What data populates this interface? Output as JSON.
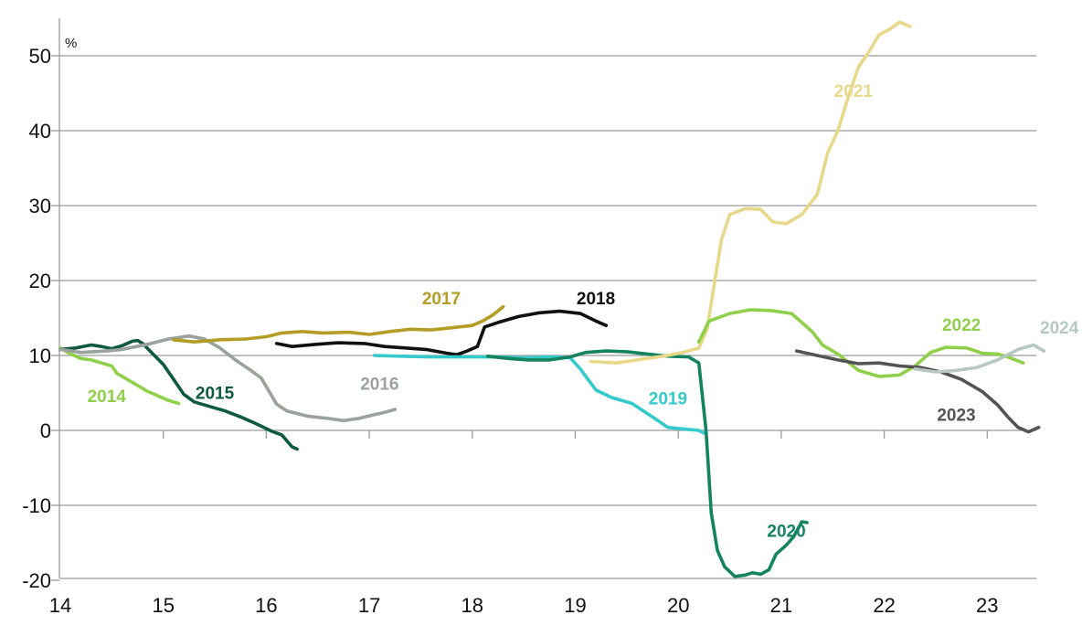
{
  "chart_data": {
    "type": "line",
    "ylabel": "%",
    "xlim": [
      14,
      23.45
    ],
    "ylim": [
      -20,
      55
    ],
    "grid": true,
    "x_ticks": [
      14,
      15,
      16,
      17,
      18,
      19,
      20,
      21,
      22,
      23
    ],
    "x_tick_labels": [
      "14",
      "15",
      "16",
      "17",
      "18",
      "19",
      "20",
      "21",
      "22",
      "23"
    ],
    "y_ticks": [
      50,
      40,
      30,
      20,
      10,
      0,
      -10,
      -20
    ],
    "y_tick_labels": [
      "50",
      "40",
      "30",
      "20",
      "10",
      "0",
      "-10",
      "-20"
    ],
    "series": [
      {
        "name": "2014",
        "color": "#8fcf4a",
        "label_bold": true,
        "label_at": [
          14.45,
          3.8
        ],
        "points": [
          [
            14.0,
            11.0
          ],
          [
            14.1,
            10.2
          ],
          [
            14.2,
            9.6
          ],
          [
            14.3,
            9.4
          ],
          [
            14.4,
            9.0
          ],
          [
            14.5,
            8.6
          ],
          [
            14.55,
            7.6
          ],
          [
            14.65,
            6.8
          ],
          [
            14.75,
            6.0
          ],
          [
            14.85,
            5.2
          ],
          [
            14.95,
            4.6
          ],
          [
            15.05,
            4.0
          ],
          [
            15.15,
            3.6
          ]
        ]
      },
      {
        "name": "2015",
        "color": "#0e5a3f",
        "label_bold": true,
        "label_at": [
          15.5,
          4.2
        ],
        "points": [
          [
            14.0,
            10.8
          ],
          [
            14.15,
            11.0
          ],
          [
            14.3,
            11.4
          ],
          [
            14.4,
            11.2
          ],
          [
            14.5,
            10.9
          ],
          [
            14.6,
            11.3
          ],
          [
            14.7,
            11.9
          ],
          [
            14.75,
            12.0
          ],
          [
            14.8,
            11.6
          ],
          [
            14.9,
            10.2
          ],
          [
            15.0,
            8.8
          ],
          [
            15.1,
            6.8
          ],
          [
            15.2,
            4.8
          ],
          [
            15.3,
            3.8
          ],
          [
            15.45,
            3.2
          ],
          [
            15.6,
            2.6
          ],
          [
            15.75,
            1.8
          ],
          [
            15.9,
            0.9
          ],
          [
            16.05,
            -0.1
          ],
          [
            16.15,
            -0.6
          ],
          [
            16.25,
            -2.2
          ],
          [
            16.3,
            -2.5
          ]
        ]
      },
      {
        "name": "2016",
        "color": "#9aa29c",
        "label_bold": true,
        "label_at": [
          17.1,
          5.4
        ],
        "points": [
          [
            14.0,
            10.8
          ],
          [
            14.2,
            10.4
          ],
          [
            14.45,
            10.6
          ],
          [
            14.6,
            10.8
          ],
          [
            14.85,
            11.5
          ],
          [
            15.05,
            12.2
          ],
          [
            15.25,
            12.6
          ],
          [
            15.4,
            12.2
          ],
          [
            15.55,
            11.0
          ],
          [
            15.7,
            9.4
          ],
          [
            15.85,
            8.0
          ],
          [
            15.95,
            7.0
          ],
          [
            16.1,
            3.5
          ],
          [
            16.2,
            2.6
          ],
          [
            16.4,
            1.9
          ],
          [
            16.6,
            1.6
          ],
          [
            16.75,
            1.3
          ],
          [
            16.9,
            1.6
          ],
          [
            17.05,
            2.1
          ],
          [
            17.15,
            2.4
          ],
          [
            17.25,
            2.8
          ]
        ]
      },
      {
        "name": "2017",
        "color": "#b39d25",
        "label_bold": true,
        "label_at": [
          17.7,
          16.8
        ],
        "points": [
          [
            15.1,
            12.1
          ],
          [
            15.3,
            11.8
          ],
          [
            15.55,
            12.1
          ],
          [
            15.8,
            12.2
          ],
          [
            16.0,
            12.5
          ],
          [
            16.15,
            13.0
          ],
          [
            16.35,
            13.2
          ],
          [
            16.55,
            13.0
          ],
          [
            16.8,
            13.1
          ],
          [
            17.0,
            12.8
          ],
          [
            17.2,
            13.2
          ],
          [
            17.4,
            13.5
          ],
          [
            17.6,
            13.4
          ],
          [
            17.8,
            13.7
          ],
          [
            18.0,
            14.0
          ],
          [
            18.1,
            14.6
          ],
          [
            18.2,
            15.4
          ],
          [
            18.3,
            16.5
          ]
        ]
      },
      {
        "name": "2018",
        "color": "#111111",
        "label_bold": true,
        "label_at": [
          19.2,
          16.8
        ],
        "points": [
          [
            16.1,
            11.6
          ],
          [
            16.25,
            11.2
          ],
          [
            16.5,
            11.5
          ],
          [
            16.7,
            11.7
          ],
          [
            16.95,
            11.6
          ],
          [
            17.15,
            11.2
          ],
          [
            17.35,
            11.0
          ],
          [
            17.55,
            10.8
          ],
          [
            17.75,
            10.3
          ],
          [
            17.85,
            10.1
          ],
          [
            17.95,
            10.6
          ],
          [
            18.05,
            11.2
          ],
          [
            18.12,
            13.8
          ],
          [
            18.25,
            14.4
          ],
          [
            18.45,
            15.2
          ],
          [
            18.65,
            15.7
          ],
          [
            18.85,
            15.9
          ],
          [
            19.05,
            15.6
          ],
          [
            19.2,
            14.6
          ],
          [
            19.3,
            14.0
          ]
        ]
      },
      {
        "name": "2019",
        "color": "#34c9cb",
        "label_bold": true,
        "label_at": [
          19.9,
          3.5
        ],
        "points": [
          [
            17.05,
            10.0
          ],
          [
            17.3,
            9.9
          ],
          [
            17.6,
            9.8
          ],
          [
            17.9,
            9.8
          ],
          [
            18.2,
            9.8
          ],
          [
            18.5,
            9.7
          ],
          [
            18.75,
            9.8
          ],
          [
            18.95,
            9.7
          ],
          [
            19.05,
            8.2
          ],
          [
            19.2,
            5.4
          ],
          [
            19.35,
            4.4
          ],
          [
            19.55,
            3.6
          ],
          [
            19.75,
            1.8
          ],
          [
            19.9,
            0.4
          ],
          [
            20.05,
            0.2
          ],
          [
            20.2,
            0.0
          ],
          [
            20.27,
            -0.5
          ]
        ]
      },
      {
        "name": "2020",
        "color": "#14835f",
        "label_bold": true,
        "label_at": [
          21.05,
          -14.2
        ],
        "points": [
          [
            18.15,
            9.9
          ],
          [
            18.35,
            9.6
          ],
          [
            18.55,
            9.4
          ],
          [
            18.75,
            9.4
          ],
          [
            18.95,
            9.8
          ],
          [
            19.1,
            10.4
          ],
          [
            19.3,
            10.6
          ],
          [
            19.5,
            10.5
          ],
          [
            19.7,
            10.2
          ],
          [
            19.9,
            9.9
          ],
          [
            20.1,
            9.8
          ],
          [
            20.2,
            9.0
          ],
          [
            20.27,
            0.0
          ],
          [
            20.32,
            -11.0
          ],
          [
            20.38,
            -16.0
          ],
          [
            20.45,
            -18.2
          ],
          [
            20.55,
            -19.5
          ],
          [
            20.65,
            -19.3
          ],
          [
            20.72,
            -19.0
          ],
          [
            20.8,
            -19.2
          ],
          [
            20.88,
            -18.6
          ],
          [
            20.95,
            -16.5
          ],
          [
            21.05,
            -15.3
          ],
          [
            21.12,
            -14.2
          ],
          [
            21.2,
            -12.2
          ],
          [
            21.25,
            -12.3
          ]
        ]
      },
      {
        "name": "2021",
        "color": "#e8d889",
        "label_bold": true,
        "label_at": [
          21.7,
          44.5
        ],
        "points": [
          [
            19.15,
            9.2
          ],
          [
            19.4,
            9.0
          ],
          [
            19.6,
            9.4
          ],
          [
            19.85,
            9.9
          ],
          [
            20.05,
            10.4
          ],
          [
            20.2,
            11.0
          ],
          [
            20.28,
            13.5
          ],
          [
            20.35,
            19.5
          ],
          [
            20.42,
            25.5
          ],
          [
            20.5,
            28.8
          ],
          [
            20.65,
            29.6
          ],
          [
            20.8,
            29.5
          ],
          [
            20.92,
            27.8
          ],
          [
            21.05,
            27.6
          ],
          [
            21.2,
            28.8
          ],
          [
            21.35,
            31.5
          ],
          [
            21.45,
            37.0
          ],
          [
            21.55,
            40.0
          ],
          [
            21.65,
            44.5
          ],
          [
            21.75,
            48.5
          ],
          [
            21.85,
            50.5
          ],
          [
            21.95,
            52.8
          ],
          [
            22.05,
            53.5
          ],
          [
            22.15,
            54.5
          ],
          [
            22.25,
            53.9
          ]
        ]
      },
      {
        "name": "2022",
        "color": "#8fcf4a",
        "label_bold": true,
        "label_at": [
          22.75,
          13.3
        ],
        "points": [
          [
            20.2,
            11.8
          ],
          [
            20.3,
            14.6
          ],
          [
            20.5,
            15.6
          ],
          [
            20.7,
            16.1
          ],
          [
            20.9,
            16.0
          ],
          [
            21.1,
            15.6
          ],
          [
            21.3,
            13.2
          ],
          [
            21.4,
            11.4
          ],
          [
            21.55,
            10.2
          ],
          [
            21.75,
            8.0
          ],
          [
            21.95,
            7.2
          ],
          [
            22.15,
            7.4
          ],
          [
            22.3,
            8.6
          ],
          [
            22.45,
            10.4
          ],
          [
            22.6,
            11.1
          ],
          [
            22.8,
            11.0
          ],
          [
            22.95,
            10.3
          ],
          [
            23.1,
            10.2
          ],
          [
            23.2,
            9.8
          ],
          [
            23.35,
            9.0
          ]
        ]
      },
      {
        "name": "2023",
        "color": "#545454",
        "label_bold": true,
        "label_at": [
          22.7,
          1.3
        ],
        "points": [
          [
            21.15,
            10.6
          ],
          [
            21.35,
            10.0
          ],
          [
            21.55,
            9.4
          ],
          [
            21.75,
            8.9
          ],
          [
            21.95,
            9.0
          ],
          [
            22.15,
            8.6
          ],
          [
            22.35,
            8.4
          ],
          [
            22.55,
            7.8
          ],
          [
            22.75,
            6.8
          ],
          [
            22.95,
            5.2
          ],
          [
            23.1,
            3.4
          ],
          [
            23.2,
            1.8
          ],
          [
            23.3,
            0.4
          ],
          [
            23.4,
            -0.2
          ],
          [
            23.5,
            0.4
          ]
        ]
      },
      {
        "name": "2024",
        "color": "#b5c9c1",
        "label_bold": true,
        "label_at": [
          23.7,
          12.9
        ],
        "points": [
          [
            22.3,
            8.2
          ],
          [
            22.5,
            7.8
          ],
          [
            22.7,
            8.0
          ],
          [
            22.9,
            8.4
          ],
          [
            23.1,
            9.4
          ],
          [
            23.3,
            10.8
          ],
          [
            23.45,
            11.4
          ],
          [
            23.55,
            10.6
          ]
        ]
      }
    ]
  }
}
